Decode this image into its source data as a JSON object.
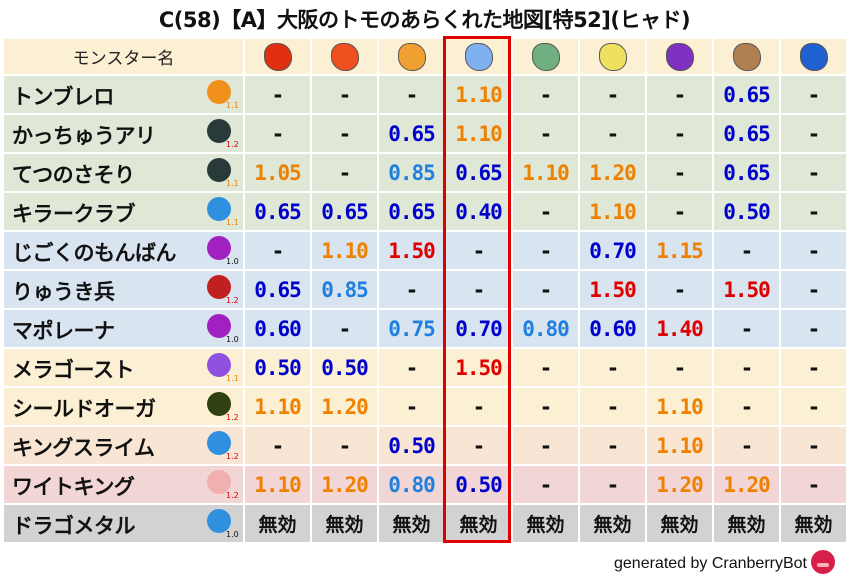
{
  "title": "C(58)【A】大阪のトモのあらくれた地図[特52](ヒャド)",
  "header": {
    "name_label": "モンスター名",
    "elements": [
      {
        "icon": "fire-ball-icon",
        "color": "#e03010"
      },
      {
        "icon": "flame-icon",
        "color": "#f05020"
      },
      {
        "icon": "explosion-icon",
        "color": "#f0a030"
      },
      {
        "icon": "ice-icon",
        "color": "#7fb0f0"
      },
      {
        "icon": "wind-icon",
        "color": "#70b080"
      },
      {
        "icon": "light-icon",
        "color": "#f0e060"
      },
      {
        "icon": "dark-icon",
        "color": "#8030c0"
      },
      {
        "icon": "earth-icon",
        "color": "#b08050"
      },
      {
        "icon": "water-icon",
        "color": "#2060d0"
      }
    ],
    "highlighted_column": 3
  },
  "colors": {
    "orange": "#f08000",
    "blue": "#0000cc",
    "light_blue": "#2080e0",
    "red": "#e00000",
    "highlight": "#e00000"
  },
  "rows": [
    {
      "name": "トンブレロ",
      "icon": "paw-icon",
      "icon_color": "#f0901a",
      "level": "1.1",
      "bg": "#dfe8d7",
      "values": [
        "-",
        "-",
        "-",
        "1.10",
        "-",
        "-",
        "-",
        "0.65",
        "-"
      ]
    },
    {
      "name": "かっちゅうアリ",
      "icon": "ant-icon",
      "icon_color": "#2a3a3a",
      "level": "1.2",
      "bg": "#dfe8d7",
      "values": [
        "-",
        "-",
        "0.65",
        "1.10",
        "-",
        "-",
        "-",
        "0.65",
        "-"
      ]
    },
    {
      "name": "てつのさそり",
      "icon": "scorpion-icon",
      "icon_color": "#2a3a3a",
      "level": "1.1",
      "bg": "#dfe8d7",
      "values": [
        "1.05",
        "-",
        "0.85",
        "0.65",
        "1.10",
        "1.20",
        "-",
        "0.65",
        "-"
      ]
    },
    {
      "name": "キラークラブ",
      "icon": "water-drop-icon",
      "icon_color": "#3090e0",
      "level": "1.1",
      "bg": "#dfe8d7",
      "values": [
        "0.65",
        "0.65",
        "0.65",
        "0.40",
        "-",
        "1.10",
        "-",
        "0.50",
        "-"
      ]
    },
    {
      "name": "じごくのもんばん",
      "icon": "trident-icon",
      "icon_color": "#a020c0",
      "level": "1.0",
      "bg": "#d8e4f0",
      "values": [
        "-",
        "1.10",
        "1.50",
        "-",
        "-",
        "0.70",
        "1.15",
        "-",
        "-"
      ]
    },
    {
      "name": "りゅうき兵",
      "icon": "dragon-icon",
      "icon_color": "#c02020",
      "level": "1.2",
      "bg": "#d8e4f0",
      "values": [
        "0.65",
        "0.85",
        "-",
        "-",
        "-",
        "1.50",
        "-",
        "1.50",
        "-"
      ]
    },
    {
      "name": "マポレーナ",
      "icon": "trident-icon",
      "icon_color": "#a020c0",
      "level": "1.0",
      "bg": "#d8e4f0",
      "values": [
        "0.60",
        "-",
        "0.75",
        "0.70",
        "0.80",
        "0.60",
        "1.40",
        "-",
        "-"
      ]
    },
    {
      "name": "メラゴースト",
      "icon": "ghost-icon",
      "icon_color": "#9050e0",
      "level": "1.1",
      "bg": "#fcf0d4",
      "values": [
        "0.50",
        "0.50",
        "-",
        "1.50",
        "-",
        "-",
        "-",
        "-",
        "-"
      ]
    },
    {
      "name": "シールドオーガ",
      "icon": "hooded-icon",
      "icon_color": "#304010",
      "level": "1.2",
      "bg": "#fcf0d4",
      "values": [
        "1.10",
        "1.20",
        "-",
        "-",
        "-",
        "-",
        "1.10",
        "-",
        "-"
      ]
    },
    {
      "name": "キングスライム",
      "icon": "slime-icon",
      "icon_color": "#3090e0",
      "level": "1.2",
      "bg": "#f8e5d4",
      "values": [
        "-",
        "-",
        "0.50",
        "-",
        "-",
        "-",
        "1.10",
        "-",
        "-"
      ]
    },
    {
      "name": "ワイトキング",
      "icon": "skull-icon",
      "icon_color": "#f0b0b0",
      "level": "1.2",
      "bg": "#f2d6d6",
      "values": [
        "1.10",
        "1.20",
        "0.80",
        "0.50",
        "-",
        "-",
        "1.20",
        "1.20",
        "-"
      ]
    },
    {
      "name": "ドラゴメタル",
      "icon": "slime-icon",
      "icon_color": "#3090e0",
      "level": "1.0",
      "bg": "#d2d2d2",
      "values": [
        "無効",
        "無効",
        "無効",
        "無効",
        "無効",
        "無効",
        "無効",
        "無効",
        "無効"
      ]
    }
  ],
  "footer": {
    "text": "generated by CranberryBot",
    "logo": "cranberry-bot-icon"
  }
}
